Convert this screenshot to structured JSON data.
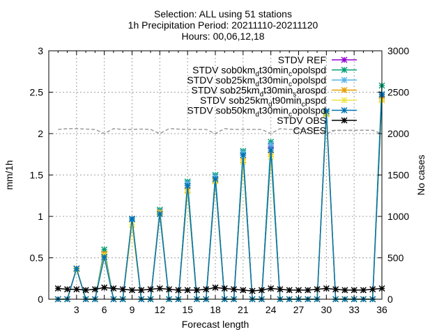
{
  "chart_data": {
    "type": "line",
    "title_lines": [
      "Selection: ALL using    51 stations",
      "1h Precipitation   Period: 20211110-20211120",
      "Hours: 00,06,12,18"
    ],
    "xlabel": "Forecast length",
    "ylabel": "mm/1h",
    "y2label": "No cases",
    "xlim": [
      0,
      36
    ],
    "ylim": [
      0,
      3
    ],
    "y2lim": [
      0,
      3000
    ],
    "xticks": [
      "3",
      "6",
      "9",
      "12",
      "15",
      "18",
      "21",
      "24",
      "27",
      "30",
      "33",
      "36"
    ],
    "yticks": [
      "0",
      "0.5",
      "1",
      "1.5",
      "2",
      "2.5",
      "3"
    ],
    "y2ticks": [
      "0",
      "500",
      "1000",
      "1500",
      "2000",
      "2500",
      "3000"
    ],
    "grid": true,
    "legend_position": "top-right",
    "x": [
      1,
      2,
      3,
      4,
      5,
      6,
      7,
      8,
      9,
      10,
      11,
      12,
      13,
      14,
      15,
      16,
      17,
      18,
      19,
      20,
      21,
      22,
      23,
      24,
      25,
      26,
      27,
      28,
      29,
      30,
      31,
      32,
      33,
      34,
      35,
      36
    ],
    "series": [
      {
        "name_parts": [
          "STDV REF"
        ],
        "color": "#9400d3",
        "marker": "x",
        "values": [
          0,
          0,
          0.37,
          0,
          0,
          0.55,
          0,
          0,
          0.97,
          0,
          0,
          1.06,
          0,
          0,
          1.4,
          0,
          0,
          1.48,
          0,
          0,
          1.77,
          0,
          0,
          1.85,
          0,
          0,
          0,
          0,
          0,
          2.27,
          0,
          0,
          0,
          0,
          0,
          2.45
        ]
      },
      {
        "name_parts": [
          "STDV sob0km",
          "d",
          "t30min",
          "c",
          "opolspd"
        ],
        "color": "#009e73",
        "marker": "x",
        "values": [
          0,
          0,
          0.37,
          0,
          0,
          0.6,
          0,
          0,
          0.97,
          0,
          0,
          1.08,
          0,
          0,
          1.42,
          0,
          0,
          1.5,
          0,
          0,
          1.79,
          0,
          0,
          1.9,
          0,
          0,
          0,
          0,
          0,
          2.26,
          0,
          0,
          0,
          0,
          0,
          2.58
        ]
      },
      {
        "name_parts": [
          "STDV sob25km",
          "d",
          "t30min",
          "c",
          "opolspd"
        ],
        "color": "#56b4e9",
        "marker": "x",
        "values": [
          0,
          0,
          0.37,
          0,
          0,
          0.55,
          0,
          0,
          0.96,
          0,
          0,
          1.06,
          0,
          0,
          1.4,
          0,
          0,
          1.48,
          0,
          0,
          1.77,
          0,
          0,
          1.87,
          0,
          0,
          0,
          0,
          0,
          2.25,
          0,
          0,
          0,
          0,
          0,
          2.48
        ]
      },
      {
        "name_parts": [
          "STDV sob25km",
          "d",
          "t30min",
          "s",
          "arospd"
        ],
        "color": "#e69f00",
        "marker": "x",
        "values": [
          0,
          0,
          0.37,
          0,
          0,
          0.55,
          0,
          0,
          0.9,
          0,
          0,
          1.05,
          0,
          0,
          1.32,
          0,
          0,
          1.43,
          0,
          0,
          1.68,
          0,
          0,
          1.75,
          0,
          0,
          0,
          0,
          0,
          2.24,
          0,
          0,
          0,
          0,
          0,
          2.42
        ]
      },
      {
        "name_parts": [
          "STDV sob25km",
          "d",
          "t90min",
          "c",
          "pspd"
        ],
        "color": "#f0e442",
        "marker": "x",
        "values": [
          0,
          0,
          0.36,
          0,
          0,
          0.53,
          0,
          0,
          0.9,
          0,
          0,
          1.04,
          0,
          0,
          1.3,
          0,
          0,
          1.42,
          0,
          0,
          1.66,
          0,
          0,
          1.72,
          0,
          0,
          0,
          0,
          0,
          2.23,
          0,
          0,
          0,
          0,
          0,
          2.4
        ]
      },
      {
        "name_parts": [
          "STDV sob50km",
          "d",
          "t30min",
          "c",
          "opolspd"
        ],
        "color": "#0072b2",
        "marker": "x",
        "values": [
          0,
          0,
          0.37,
          0,
          0,
          0.51,
          0,
          0,
          0.97,
          0,
          0,
          1.03,
          0,
          0,
          1.37,
          0,
          0,
          1.45,
          0,
          0,
          1.74,
          0,
          0,
          1.8,
          0,
          0,
          0,
          0,
          0,
          2.27,
          0,
          0,
          0,
          0,
          0,
          2.47
        ]
      },
      {
        "name_parts": [
          "STDV OBS"
        ],
        "color": "#000000",
        "marker": "x",
        "values": [
          0.13,
          0.12,
          0.12,
          0.11,
          0.12,
          0.14,
          0.13,
          0.12,
          0.11,
          0.11,
          0.12,
          0.13,
          0.12,
          0.11,
          0.11,
          0.11,
          0.12,
          0.14,
          0.13,
          0.12,
          0.11,
          0.1,
          0.11,
          0.13,
          0.12,
          0.11,
          0.11,
          0.11,
          0.12,
          0.13,
          0.12,
          0.11,
          0.11,
          0.11,
          0.12,
          0.13
        ]
      }
    ],
    "cases": {
      "name": "CASES",
      "color": "#a0a0a0",
      "values": [
        2050,
        2060,
        2060,
        2055,
        2050,
        2000,
        2060,
        2050,
        2050,
        2055,
        2050,
        2000,
        2060,
        2055,
        2050,
        2050,
        2050,
        2000,
        2060,
        2050,
        2050,
        2050,
        2050,
        2000,
        2060,
        2050,
        2050,
        2050,
        2050,
        2000,
        2040,
        2040,
        2040,
        2040,
        2040,
        2000
      ]
    }
  }
}
